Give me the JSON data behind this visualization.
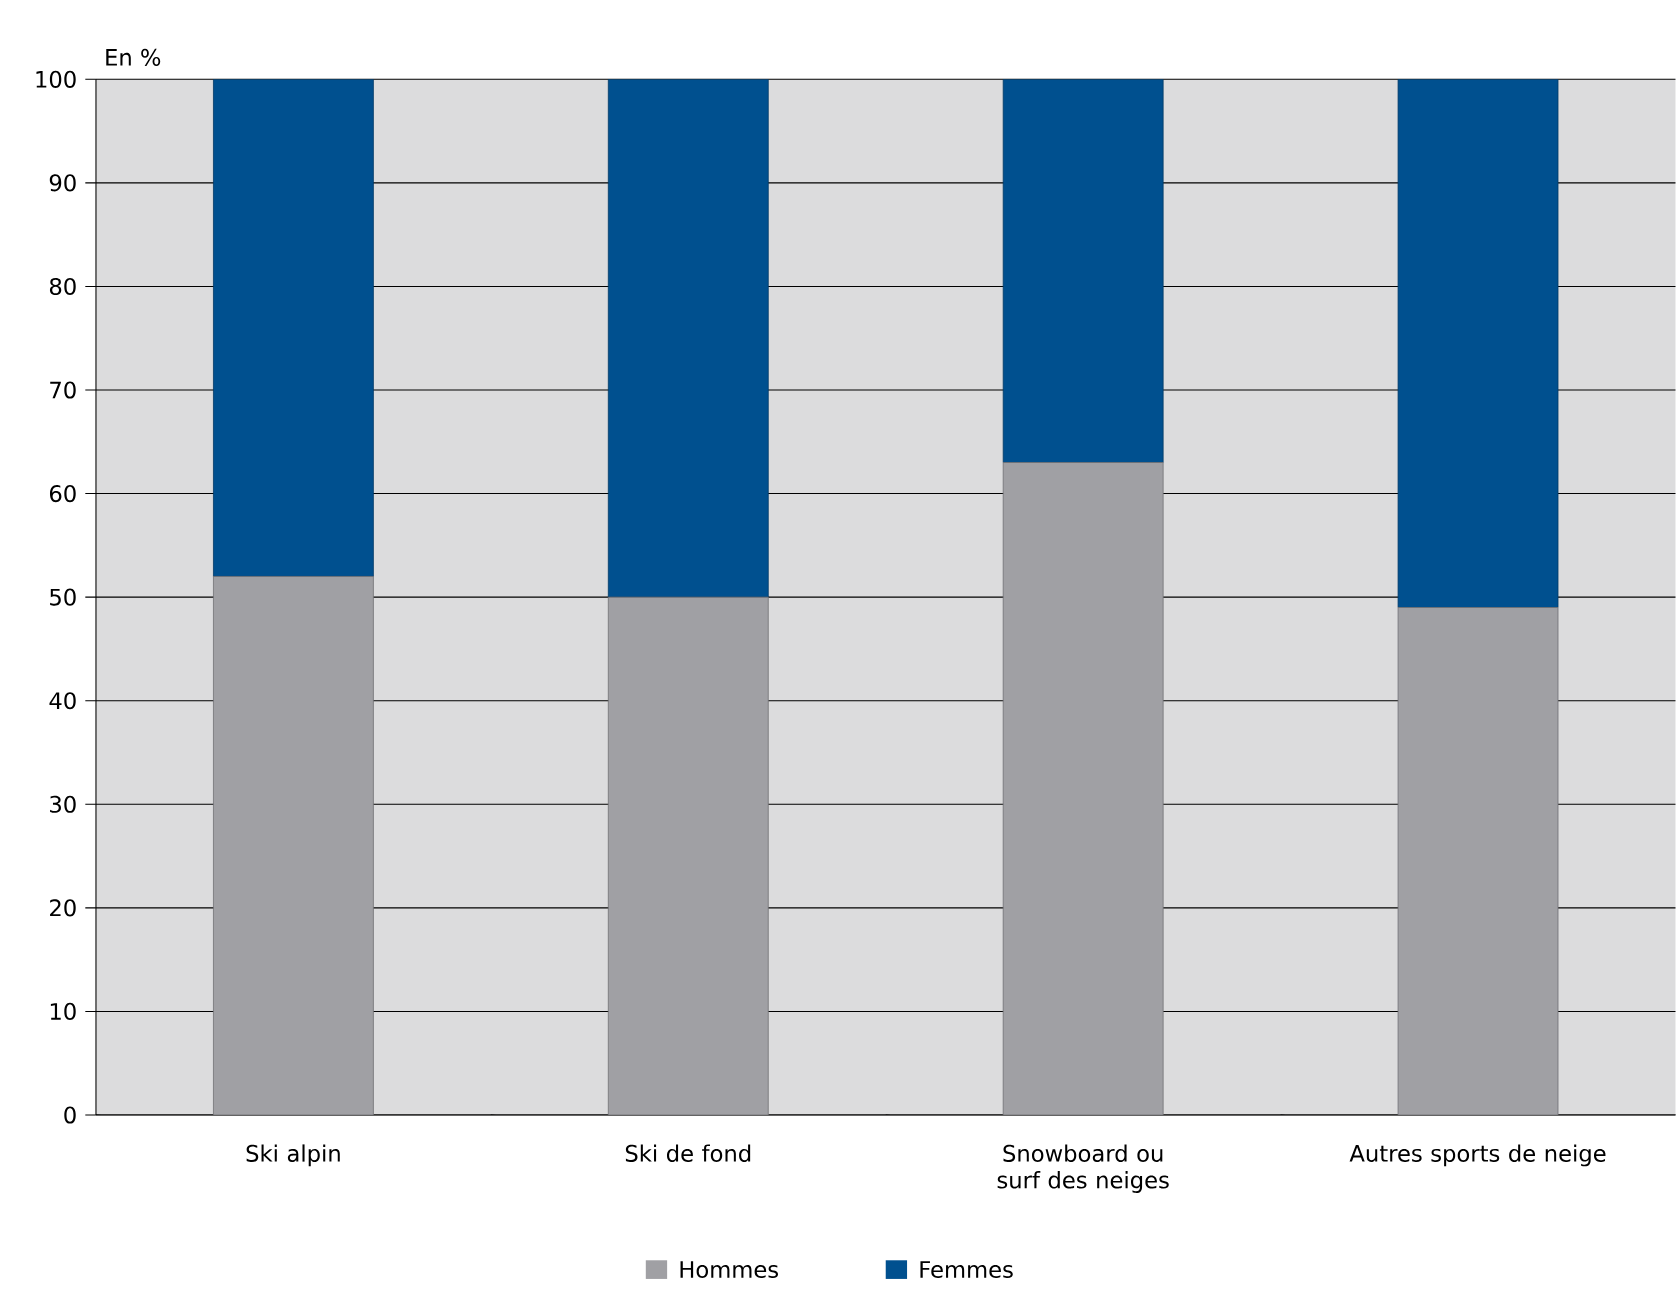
{
  "chart_data": {
    "type": "bar",
    "stacked": true,
    "ylabel": "En %",
    "categories": [
      "Ski alpin",
      "Ski de fond",
      "Snowboard ou surf des neiges",
      "Autres sports de neige"
    ],
    "series": [
      {
        "name": "Hommes",
        "color": "#a0a0a4",
        "values": [
          52,
          50,
          63,
          49
        ]
      },
      {
        "name": "Femmes",
        "color": "#00508f",
        "values": [
          48,
          50,
          37,
          51
        ]
      }
    ],
    "ylim": [
      0,
      100
    ],
    "yticks": [
      0,
      10,
      20,
      30,
      40,
      50,
      60,
      70,
      80,
      90,
      100
    ],
    "grid": "y",
    "legend": "bottom"
  }
}
